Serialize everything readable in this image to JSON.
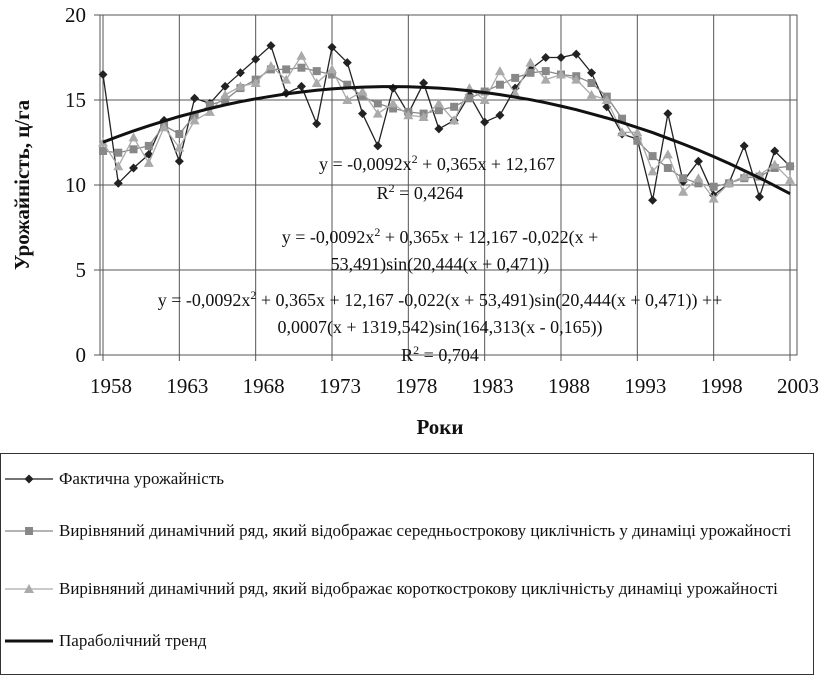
{
  "chart_data": {
    "type": "line",
    "y_label": "Урожайність, ц/га",
    "x_label": "Роки",
    "x": [
      1958,
      1959,
      1960,
      1961,
      1962,
      1963,
      1964,
      1965,
      1966,
      1967,
      1968,
      1969,
      1970,
      1971,
      1972,
      1973,
      1974,
      1975,
      1976,
      1977,
      1978,
      1979,
      1980,
      1981,
      1982,
      1983,
      1984,
      1985,
      1986,
      1987,
      1988,
      1989,
      1990,
      1991,
      1992,
      1993,
      1994,
      1995,
      1996,
      1997,
      1998,
      1999,
      2000,
      2001,
      2002,
      2003
    ],
    "xlim": [
      1958,
      2003
    ],
    "xticks": [
      1958,
      1963,
      1968,
      1973,
      1978,
      1983,
      1988,
      1993,
      1998,
      2003
    ],
    "ylim": [
      0,
      20
    ],
    "yticks": [
      0,
      5,
      10,
      15,
      20
    ],
    "grid": true,
    "series": [
      {
        "name": "Фактична урожайність",
        "color": "#222222",
        "marker": "diamond",
        "values": [
          16.5,
          10.1,
          11.0,
          11.8,
          13.8,
          11.4,
          15.1,
          14.8,
          15.8,
          16.6,
          17.4,
          18.2,
          15.4,
          15.8,
          13.6,
          18.1,
          17.2,
          14.2,
          12.3,
          15.7,
          14.2,
          16.0,
          13.3,
          13.8,
          15.3,
          13.7,
          14.1,
          15.7,
          16.8,
          17.5,
          17.5,
          17.7,
          16.6,
          14.6,
          13.0,
          12.7,
          9.1,
          14.2,
          10.2,
          11.4,
          9.4,
          10.1,
          12.3,
          9.3,
          12.0,
          11.1
        ]
      },
      {
        "name": "Вирівняний динамічний ряд, який відображає середньострокову циклічність у динаміці урожайності",
        "color": "#888888",
        "marker": "square",
        "values": [
          12.0,
          11.9,
          12.1,
          12.3,
          13.5,
          13.0,
          14.1,
          14.7,
          15.0,
          15.7,
          16.2,
          16.8,
          16.8,
          16.9,
          16.7,
          16.5,
          15.9,
          15.2,
          14.8,
          14.5,
          14.3,
          14.2,
          14.4,
          14.6,
          15.1,
          15.5,
          15.9,
          16.3,
          16.6,
          16.7,
          16.5,
          16.4,
          16.0,
          15.2,
          13.9,
          12.6,
          11.7,
          11.0,
          10.4,
          10.1,
          9.9,
          10.1,
          10.4,
          10.5,
          11.0,
          11.1
        ]
      },
      {
        "name": "Вирівняний динамічний ряд, який відображає короткострокову циклічністьу динаміці урожайності",
        "color": "#aaaaaa",
        "marker": "triangle",
        "values": [
          12.5,
          11.1,
          12.8,
          11.3,
          13.4,
          12.2,
          13.8,
          14.3,
          15.3,
          15.8,
          16.0,
          17.0,
          16.2,
          17.6,
          16.0,
          16.8,
          15.0,
          15.5,
          14.2,
          14.8,
          14.1,
          14.0,
          14.8,
          13.8,
          15.7,
          15.0,
          16.7,
          15.4,
          17.2,
          16.2,
          16.5,
          16.2,
          15.3,
          15.0,
          13.1,
          13.1,
          10.8,
          11.8,
          9.6,
          10.4,
          9.2,
          10.1,
          10.5,
          10.6,
          11.2,
          10.3
        ]
      },
      {
        "name": "Параболічний тренд",
        "color": "#111111",
        "marker": "none",
        "values": [
          12.52,
          12.86,
          13.18,
          13.48,
          13.76,
          14.03,
          14.27,
          14.5,
          14.71,
          14.9,
          15.07,
          15.22,
          15.36,
          15.47,
          15.57,
          15.65,
          15.71,
          15.76,
          15.78,
          15.79,
          15.78,
          15.74,
          15.7,
          15.63,
          15.54,
          15.44,
          15.32,
          15.17,
          15.02,
          14.84,
          14.64,
          14.43,
          14.19,
          13.94,
          13.67,
          13.38,
          13.08,
          12.75,
          12.41,
          12.05,
          11.67,
          11.27,
          10.85,
          10.42,
          9.96,
          9.49
        ]
      }
    ],
    "annotations": [
      {
        "lines": [
          [
            "y = -0,0092x",
            "2",
            " + 0,365x + 12,167"
          ],
          [
            "R",
            "2",
            " = 0,4264"
          ]
        ]
      },
      {
        "lines": [
          [
            "y = -0,0092x",
            "2",
            " + 0,365x + 12,167 -0,022(x +"
          ],
          [
            "53,491)sin(20,444(x + 0,471))"
          ]
        ]
      },
      {
        "lines": [
          [
            "y = -0,0092x",
            "2",
            " + 0,365x + 12,167 -0,022(x + 53,491)sin(20,444(x + 0,471)) ++"
          ],
          [
            "0,0007(x + 1319,542)sin(164,313(x - 0,165))"
          ],
          [
            "R",
            "2",
            " = 0,704"
          ]
        ]
      }
    ]
  }
}
